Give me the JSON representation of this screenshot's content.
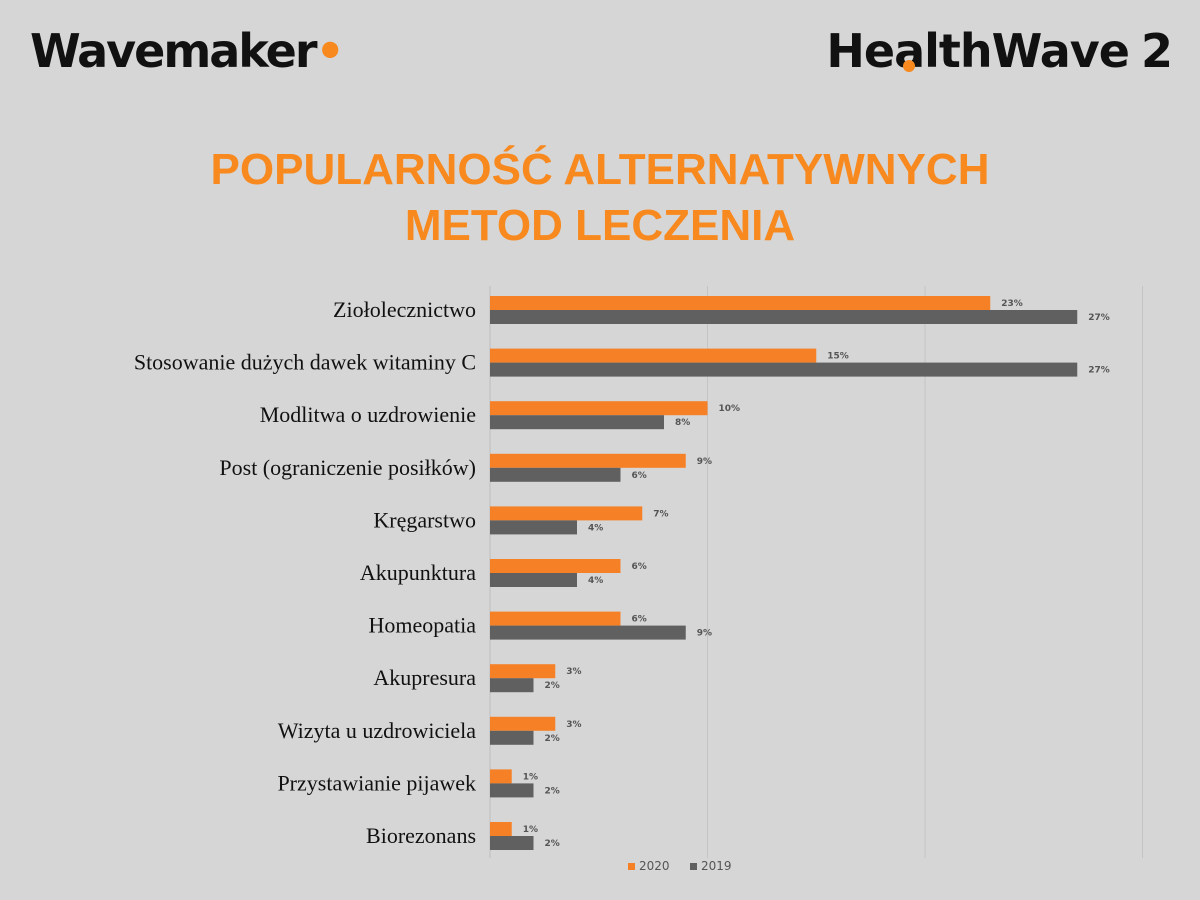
{
  "header": {
    "brand_left": "Wavemaker",
    "brand_right_pre": "He",
    "brand_right_accent": "a",
    "brand_right_post": "lthWave",
    "brand_right_number": "2"
  },
  "colors": {
    "accent": "#f7891f",
    "series_2020": "#f58026",
    "series_2019": "#606060",
    "background": "#d6d6d6"
  },
  "chart_data": {
    "type": "bar",
    "orientation": "horizontal",
    "title_lines": [
      "POPULARNOŚĆ ALTERNATYWNYCH",
      "METOD LECZENIA"
    ],
    "categories": [
      "Ziołolecznictwo",
      "Stosowanie dużych dawek witaminy C",
      "Modlitwa o uzdrowienie",
      "Post (ograniczenie posiłków)",
      "Kręgarstwo",
      "Akupunktura",
      "Homeopatia",
      "Akupresura",
      "Wizyta u uzdrowiciela",
      "Przystawianie pijawek",
      "Biorezonans"
    ],
    "series": [
      {
        "name": "2020",
        "values": [
          23,
          15,
          10,
          9,
          7,
          6,
          6,
          3,
          3,
          1,
          1
        ],
        "labels": [
          "23%",
          "15%",
          "10%",
          "9%",
          "7%",
          "6%",
          "6%",
          "3%",
          "3%",
          "1%",
          "1%"
        ]
      },
      {
        "name": "2019",
        "values": [
          27,
          27,
          8,
          6,
          4,
          4,
          9,
          2,
          2,
          2,
          2
        ],
        "labels": [
          "27%",
          "27%",
          "8%",
          "6%",
          "4%",
          "4%",
          "9%",
          "2%",
          "2%",
          "2%",
          "2%"
        ]
      }
    ],
    "xlim": [
      0,
      30
    ],
    "grid": true,
    "legend": "bottom"
  }
}
